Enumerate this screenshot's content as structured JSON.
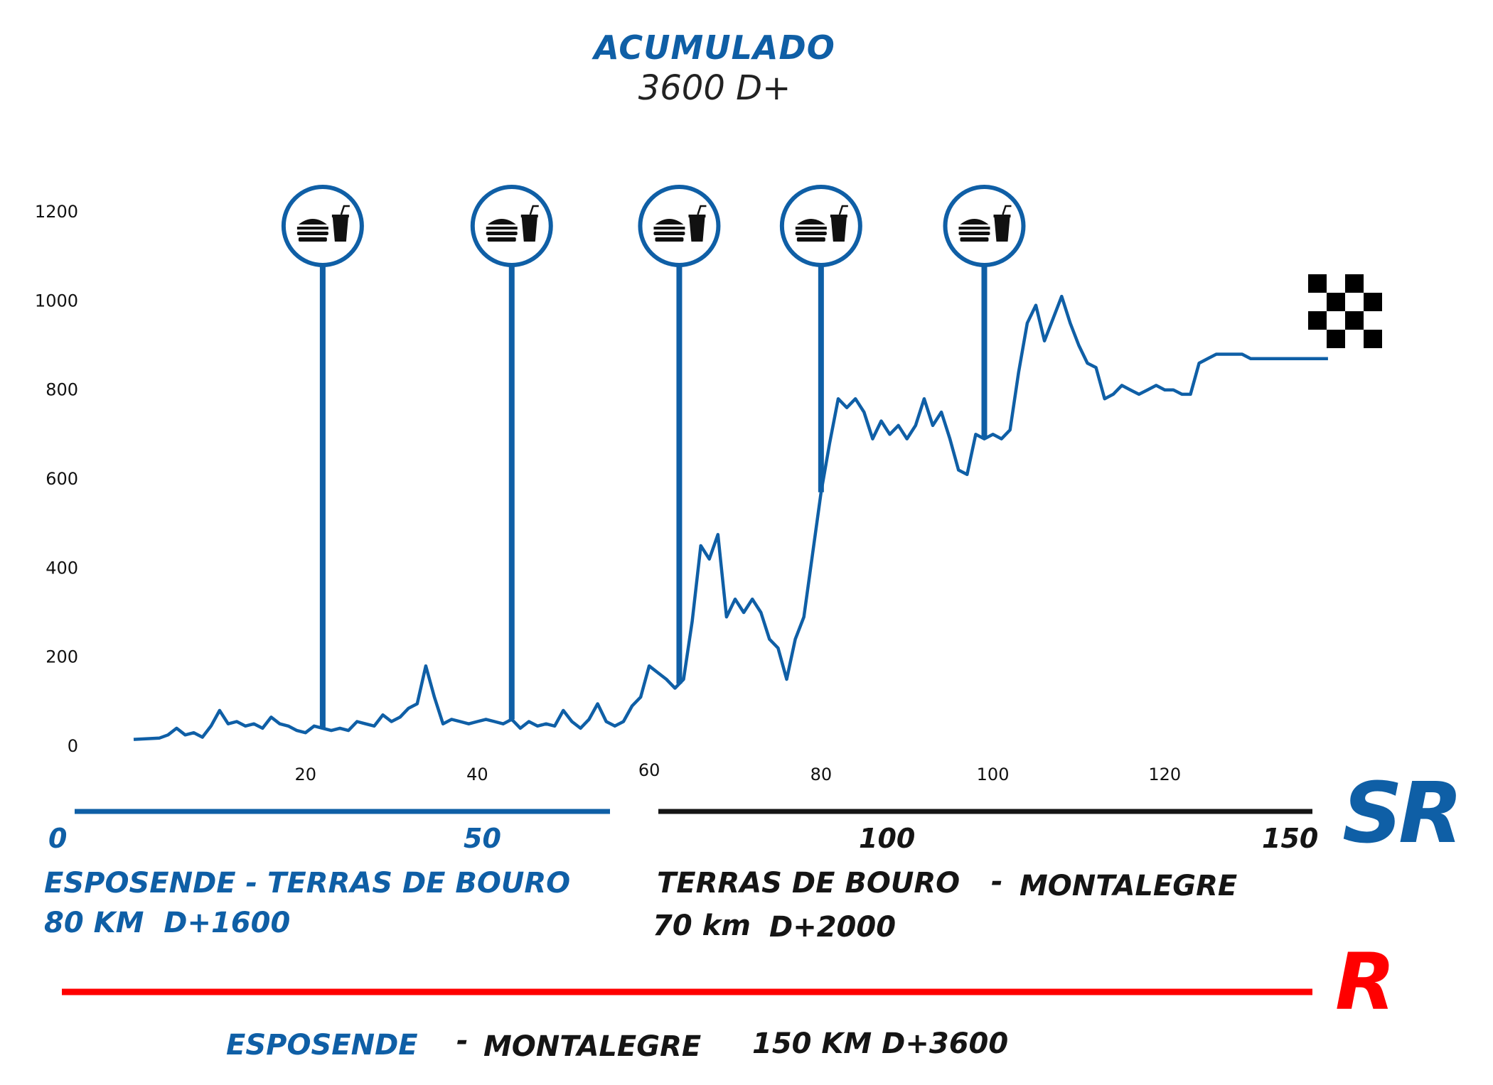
{
  "header": {
    "title": "ACUMULADO",
    "subtitle": "3600 D+"
  },
  "chart_data": {
    "type": "line",
    "title": "ACUMULADO",
    "subtitle": "3600 D+",
    "xlabel": "",
    "ylabel": "",
    "xlim": [
      0,
      140
    ],
    "ylim": [
      0,
      1250
    ],
    "x_ticks": [
      20,
      40,
      60,
      80,
      100,
      120
    ],
    "y_ticks": [
      0,
      200,
      400,
      600,
      800,
      1000,
      1200
    ],
    "grid": false,
    "color": "#0f5fa6",
    "series": [
      {
        "x": [
          0,
          3,
          4,
          5,
          6,
          7,
          8,
          9,
          10,
          11,
          12,
          13,
          14,
          15,
          16,
          17,
          18,
          19,
          20,
          21,
          22,
          23,
          24,
          25,
          26,
          27,
          28,
          29,
          30,
          31,
          32,
          33,
          34,
          35,
          36,
          37,
          38,
          39,
          40,
          41,
          42,
          43,
          44,
          45,
          46,
          47,
          48,
          49,
          50,
          51,
          52,
          53,
          54,
          55,
          56,
          57,
          58,
          59,
          60,
          61,
          62,
          63,
          64,
          65,
          66,
          67,
          68,
          69,
          70,
          71,
          72,
          73,
          74,
          75,
          76,
          77,
          78,
          79,
          80,
          81,
          82,
          83,
          84,
          85,
          86,
          87,
          88,
          89,
          90,
          91,
          92,
          93,
          94,
          95,
          96,
          97,
          98,
          99,
          100,
          101,
          102,
          103,
          104,
          105,
          106,
          107,
          108,
          109,
          110,
          111,
          112,
          113,
          114,
          115,
          116,
          117,
          118,
          119,
          120,
          121,
          122,
          123,
          124,
          125,
          126,
          127,
          128,
          129,
          130,
          131,
          132,
          133,
          134,
          135,
          136,
          137,
          138,
          139
        ],
        "y": [
          15,
          18,
          25,
          40,
          25,
          30,
          20,
          45,
          80,
          50,
          55,
          45,
          50,
          40,
          65,
          50,
          45,
          35,
          30,
          45,
          40,
          35,
          40,
          35,
          55,
          50,
          45,
          70,
          55,
          65,
          85,
          95,
          180,
          110,
          50,
          60,
          55,
          50,
          55,
          60,
          55,
          50,
          60,
          40,
          55,
          45,
          50,
          45,
          80,
          55,
          40,
          60,
          95,
          55,
          45,
          55,
          90,
          110,
          180,
          165,
          150,
          130,
          150,
          280,
          450,
          420,
          475,
          290,
          330,
          300,
          330,
          300,
          240,
          220,
          150,
          240,
          290,
          430,
          570,
          680,
          780,
          760,
          780,
          750,
          690,
          730,
          700,
          720,
          690,
          720,
          780,
          720,
          750,
          690,
          620,
          610,
          700,
          690,
          700,
          690,
          710,
          840,
          950,
          990,
          910,
          960,
          1010,
          950,
          900,
          860,
          850,
          780,
          790,
          810,
          800,
          790,
          800,
          810,
          800,
          800,
          790,
          790,
          860,
          870,
          880,
          880,
          880,
          880,
          870,
          870,
          870,
          870,
          870,
          870,
          870,
          870,
          870,
          870
        ],
        "name": ""
      }
    ],
    "aid_stations_km": [
      22,
      44,
      63.5,
      80,
      99
    ],
    "finish_flag": "checkered-flag-icon"
  },
  "scale_blue": {
    "ticks": [
      "0",
      "50"
    ],
    "color": "#0f5fa6"
  },
  "scale_black": {
    "ticks": [
      "100",
      "150"
    ],
    "color": "#151515"
  },
  "stage_sr1": {
    "route": "ESPOSENDE - TERRAS DE BOURO",
    "stats": "80 KM  D+1600"
  },
  "stage_sr2": {
    "route_a": "TERRAS DE BOURO",
    "dash": "-",
    "route_b": "MONTALEGRE",
    "distance": "70 km",
    "elevation": "D+2000"
  },
  "badge_sr": "SR",
  "badge_r": "R",
  "stage_r": {
    "from": "ESPOSENDE",
    "dash": "-",
    "to": "MONTALEGRE",
    "stats": "150 KM D+3600"
  },
  "colors": {
    "blue": "#0f5fa6",
    "black": "#151515",
    "red": "#ff0000"
  },
  "icons": {
    "aid_station": "food-drink-icon",
    "finish": "checkered-flag-icon"
  }
}
